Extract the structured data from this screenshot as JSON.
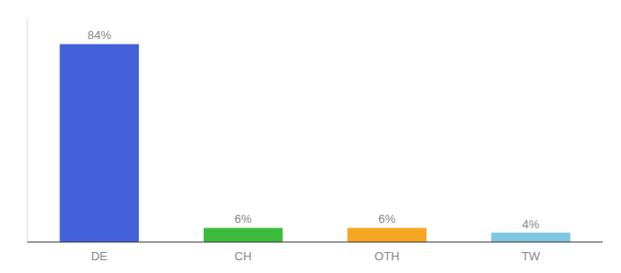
{
  "chart_data": {
    "type": "bar",
    "categories": [
      "DE",
      "CH",
      "OTH",
      "TW"
    ],
    "values": [
      84,
      6,
      6,
      4
    ],
    "value_labels": [
      "84%",
      "6%",
      "6%",
      "4%"
    ],
    "colors": [
      "#4361d8",
      "#3dbb3d",
      "#f5a623",
      "#7ec8e3"
    ],
    "ylim": [
      0,
      95
    ],
    "data_labels": true,
    "tick_labels": "x",
    "grid": false
  }
}
